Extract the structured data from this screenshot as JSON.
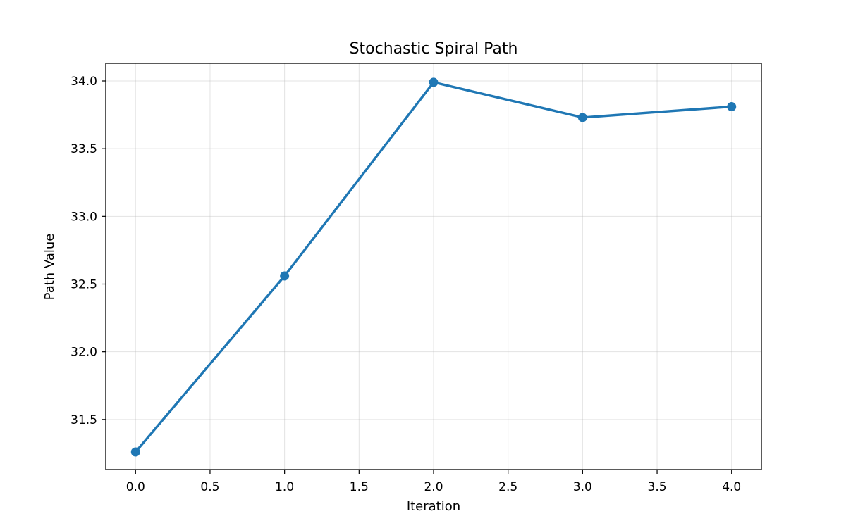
{
  "chart_data": {
    "type": "line",
    "title": "Stochastic Spiral Path",
    "xlabel": "Iteration",
    "ylabel": "Path Value",
    "xlim": [
      -0.2,
      4.2
    ],
    "ylim": [
      31.13,
      34.13
    ],
    "xticks": [
      "0.0",
      "0.5",
      "1.0",
      "1.5",
      "2.0",
      "2.5",
      "3.0",
      "3.5",
      "4.0"
    ],
    "yticks": [
      "31.5",
      "32.0",
      "32.5",
      "33.0",
      "33.5",
      "34.0"
    ],
    "grid": true,
    "series": [
      {
        "x": [
          0,
          1,
          2,
          3,
          4
        ],
        "values": [
          31.26,
          32.56,
          33.99,
          33.73,
          33.81
        ],
        "color": "#1f77b4",
        "marker": "circle"
      }
    ]
  }
}
